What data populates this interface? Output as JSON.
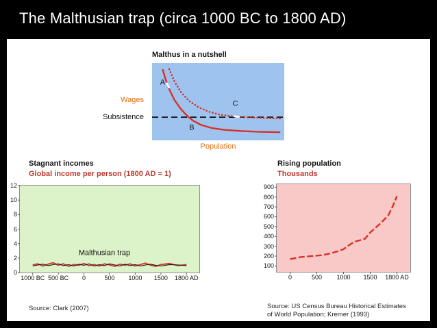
{
  "slide": {
    "title": "The Malthusian trap (circa 1000 BC to 1800 AD)"
  },
  "colors": {
    "accent_orange": "#E36C0A",
    "accent_red": "#C0362C",
    "line_red": "#D93025",
    "title_white": "#FFFFFF",
    "nutshell_bg": "#9DC3EE",
    "income_bg": "#DCF2C8",
    "population_bg": "#F9C9C7"
  },
  "nutshell": {
    "title": "Malthus in a nutshell",
    "ylabel": "Wages",
    "subsistence_label": "Subsistence",
    "xlabel": "Population"
  },
  "income_section": {
    "heading": "Stagnant incomes",
    "subheading": "Global income per person (1800 AD = 1)",
    "source": "Source: Clark (2007)"
  },
  "population_section": {
    "heading": "Rising population",
    "subheading": "Thousands",
    "source_line1": "Source: US Census Bureau Historical Estimates",
    "source_line2": "of World Population; Kremer (1993)"
  },
  "chart_data": [
    {
      "id": "nutshell",
      "type": "line",
      "bg": "#9DC3EE",
      "xlim": [
        0,
        100
      ],
      "ylim": [
        0,
        100
      ],
      "hline": {
        "v": 30,
        "label": "Subsistence",
        "color": "#111111",
        "dash": "9 5",
        "width": 1.8
      },
      "series": [
        {
          "name": "wages-actual-solid",
          "color": "#D93025",
          "width": 2.4,
          "points": [
            [
              8,
              92
            ],
            [
              10,
              80
            ],
            [
              13,
              66
            ],
            [
              17,
              52
            ],
            [
              22,
              40
            ],
            [
              27,
              31
            ],
            [
              31,
              25.5
            ],
            [
              37,
              20
            ],
            [
              45,
              16
            ],
            [
              55,
              13.5
            ],
            [
              68,
              12
            ],
            [
              82,
              11
            ],
            [
              97,
              10.5
            ]
          ]
        },
        {
          "name": "wages-counterfactual-dotted",
          "color": "#D93025",
          "width": 2.6,
          "dash": "0.1 4.6",
          "cap": "round",
          "points": [
            [
              13,
              92
            ],
            [
              17,
              76
            ],
            [
              22,
              62
            ],
            [
              28,
              51
            ],
            [
              35,
              43
            ],
            [
              43,
              37
            ],
            [
              52,
              33
            ],
            [
              62,
              31
            ],
            [
              73,
              29.8
            ],
            [
              85,
              28.8
            ],
            [
              98,
              28.2
            ]
          ]
        }
      ],
      "markers": [
        {
          "x": 12,
          "y": 71,
          "angle": -63,
          "len": 9,
          "color": "#FFFFFF",
          "width": 2.6
        },
        {
          "x": 64,
          "y": 30.8,
          "angle": -8,
          "len": 9,
          "color": "#FFFFFF",
          "width": 2.6
        }
      ],
      "annotations": [
        {
          "text": "A",
          "x": 8,
          "y": 74,
          "color": "#111111",
          "size": 11
        },
        {
          "text": "B",
          "x": 30,
          "y": 16,
          "color": "#111111",
          "size": 11
        },
        {
          "text": "C",
          "x": 63,
          "y": 47,
          "color": "#111111",
          "size": 11
        }
      ]
    },
    {
      "id": "income",
      "type": "line",
      "title": "Global income per person (1800 AD = 1)",
      "bg": "#DCF2C8",
      "xlim": [
        -1000,
        1800
      ],
      "ylim": [
        0,
        12
      ],
      "xticks": [
        {
          "v": -1000,
          "label": "1000 BC"
        },
        {
          "v": -500,
          "label": "500 BC"
        },
        {
          "v": 0,
          "label": "0"
        },
        {
          "v": 500,
          "label": "500"
        },
        {
          "v": 1000,
          "label": "1000"
        },
        {
          "v": 1500,
          "label": "1500"
        },
        {
          "v": 1800,
          "label": "1800 AD"
        }
      ],
      "yticks": [
        {
          "v": 0,
          "label": "0"
        },
        {
          "v": 2,
          "label": "2"
        },
        {
          "v": 4,
          "label": "4"
        },
        {
          "v": 6,
          "label": "6"
        },
        {
          "v": 8,
          "label": "8"
        },
        {
          "v": 10,
          "label": "10"
        },
        {
          "v": 12,
          "label": "12"
        }
      ],
      "series": [
        {
          "name": "income-per-person-red",
          "color": "#D93025",
          "width": 1.8,
          "points": [
            [
              -1000,
              1.05
            ],
            [
              -900,
              1.2
            ],
            [
              -800,
              0.9
            ],
            [
              -700,
              1.15
            ],
            [
              -600,
              1.35
            ],
            [
              -500,
              1.0
            ],
            [
              -400,
              1.2
            ],
            [
              -300,
              0.85
            ],
            [
              -200,
              1.1
            ],
            [
              -100,
              1.0
            ],
            [
              0,
              1.25
            ],
            [
              100,
              0.95
            ],
            [
              200,
              1.1
            ],
            [
              300,
              0.9
            ],
            [
              400,
              1.2
            ],
            [
              500,
              1.05
            ],
            [
              600,
              0.85
            ],
            [
              700,
              1.15
            ],
            [
              800,
              1.0
            ],
            [
              900,
              1.2
            ],
            [
              1000,
              0.9
            ],
            [
              1100,
              1.1
            ],
            [
              1200,
              1.3
            ],
            [
              1300,
              1.0
            ],
            [
              1400,
              0.85
            ],
            [
              1500,
              1.1
            ],
            [
              1600,
              1.25
            ],
            [
              1700,
              0.95
            ],
            [
              1800,
              1.1
            ]
          ]
        },
        {
          "name": "income-per-person-black",
          "color": "#1a1a1a",
          "width": 1.1,
          "points": [
            [
              -1000,
              0.9
            ],
            [
              -900,
              1.05
            ],
            [
              -800,
              1.15
            ],
            [
              -700,
              0.95
            ],
            [
              -600,
              1.1
            ],
            [
              -500,
              1.2
            ],
            [
              -400,
              0.95
            ],
            [
              -300,
              1.1
            ],
            [
              -200,
              0.9
            ],
            [
              -100,
              1.15
            ],
            [
              0,
              1.0
            ],
            [
              100,
              1.2
            ],
            [
              200,
              0.9
            ],
            [
              300,
              1.1
            ],
            [
              400,
              0.95
            ],
            [
              500,
              1.2
            ],
            [
              600,
              1.05
            ],
            [
              700,
              0.9
            ],
            [
              800,
              1.15
            ],
            [
              900,
              0.95
            ],
            [
              1000,
              1.1
            ],
            [
              1100,
              0.9
            ],
            [
              1200,
              1.05
            ],
            [
              1300,
              1.15
            ],
            [
              1400,
              1.0
            ],
            [
              1500,
              0.9
            ],
            [
              1600,
              1.1
            ],
            [
              1700,
              1.05
            ],
            [
              1800,
              0.95
            ]
          ]
        }
      ],
      "annotations": [
        {
          "text": "Malthusian trap",
          "x": 400,
          "y": 2.6,
          "color": "#111111",
          "size": 11
        }
      ]
    },
    {
      "id": "population",
      "type": "line",
      "title": "Thousands",
      "bg": "#F9C9C7",
      "xlim": [
        0,
        1800
      ],
      "ylim": [
        40,
        930
      ],
      "xticks": [
        {
          "v": 0,
          "label": "0"
        },
        {
          "v": 500,
          "label": "500"
        },
        {
          "v": 1000,
          "label": "1000"
        },
        {
          "v": 1500,
          "label": "1500"
        },
        {
          "v": 1800,
          "label": "1800 AD"
        }
      ],
      "yticks": [
        {
          "v": 100,
          "label": "100"
        },
        {
          "v": 200,
          "label": "200"
        },
        {
          "v": 300,
          "label": "300"
        },
        {
          "v": 400,
          "label": "400"
        },
        {
          "v": 500,
          "label": "500"
        },
        {
          "v": 600,
          "label": "600"
        },
        {
          "v": 700,
          "label": "700"
        },
        {
          "v": 800,
          "label": "800"
        },
        {
          "v": 900,
          "label": "900"
        }
      ],
      "series": [
        {
          "name": "world-population",
          "color": "#D93025",
          "width": 2.4,
          "dash": "9 3.5",
          "points": [
            [
              0,
              170
            ],
            [
              100,
              180
            ],
            [
              200,
              190
            ],
            [
              300,
              195
            ],
            [
              400,
              200
            ],
            [
              500,
              205
            ],
            [
              600,
              210
            ],
            [
              700,
              220
            ],
            [
              800,
              235
            ],
            [
              900,
              250
            ],
            [
              1000,
              270
            ],
            [
              1100,
              310
            ],
            [
              1200,
              345
            ],
            [
              1300,
              360
            ],
            [
              1400,
              375
            ],
            [
              1500,
              440
            ],
            [
              1600,
              520
            ],
            [
              1700,
              610
            ],
            [
              1750,
              700
            ],
            [
              1800,
              810
            ]
          ]
        }
      ]
    }
  ]
}
